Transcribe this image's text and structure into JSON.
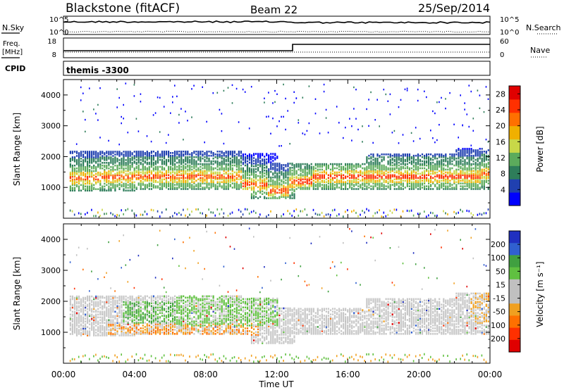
{
  "header": {
    "station": "Blackstone (fitACF)",
    "beam": "Beam 22",
    "date": "25/Sep/2014"
  },
  "noise_panel": {
    "left_label": "N.Sky",
    "right_label": "N.Search",
    "ticks_left": [
      "10^5",
      "10^0"
    ],
    "ticks_right": [
      "10^5",
      "10^0"
    ]
  },
  "freq_panel": {
    "left_label_line1": "Freq.",
    "left_label_line2": "[MHz]",
    "right_label": "Nave",
    "ticks_left": [
      "18",
      "8"
    ],
    "ticks_right": [
      "60",
      "0"
    ]
  },
  "cpid_panel": {
    "left_label": "CPID",
    "program": "themis -3300"
  },
  "colors": {
    "power_scale": [
      "#0000ff",
      "#2040b0",
      "#2e7d5a",
      "#5cab5c",
      "#c8d848",
      "#f0b000",
      "#ff7000",
      "#ff3000",
      "#e00000"
    ],
    "velocity_scale": [
      "#2030c0",
      "#3060d0",
      "#40a040",
      "#60c040",
      "#c0c0c0",
      "#c0c0c0",
      "#f0a020",
      "#ff7000",
      "#ff3000",
      "#e00000"
    ],
    "gray_scatter": "#c8c8c8"
  },
  "chart_data": [
    {
      "type": "heatmap",
      "name": "power",
      "ylabel": "Slant Range [km]",
      "y_ticks": [
        "1000",
        "2000",
        "3000",
        "4000"
      ],
      "ylim": [
        0,
        4500
      ],
      "x_ticks": [
        "00:00",
        "04:00",
        "08:00",
        "12:00",
        "16:00",
        "20:00",
        "00:00"
      ],
      "xlim_hours": [
        0,
        24
      ],
      "colorbar_label": "Power [dB]",
      "colorbar_ticks": [
        "4",
        "8",
        "12",
        "16",
        "20",
        "24",
        "28"
      ],
      "colorbar_range": [
        0,
        30
      ]
    },
    {
      "type": "heatmap",
      "name": "velocity",
      "ylabel": "Slant Range [km]",
      "y_ticks": [
        "1000",
        "2000",
        "3000",
        "4000"
      ],
      "ylim": [
        0,
        4500
      ],
      "x_ticks": [
        "00:00",
        "04:00",
        "08:00",
        "12:00",
        "16:00",
        "20:00",
        "00:00"
      ],
      "xlabel": "Time UT",
      "xlim_hours": [
        0,
        24
      ],
      "colorbar_label": "Velocity [m s⁻¹]",
      "colorbar_ticks": [
        "200",
        "100",
        "50",
        "15",
        "-15",
        "-50",
        "-100",
        "-200"
      ],
      "colorbar_range": [
        -250,
        250
      ]
    }
  ]
}
